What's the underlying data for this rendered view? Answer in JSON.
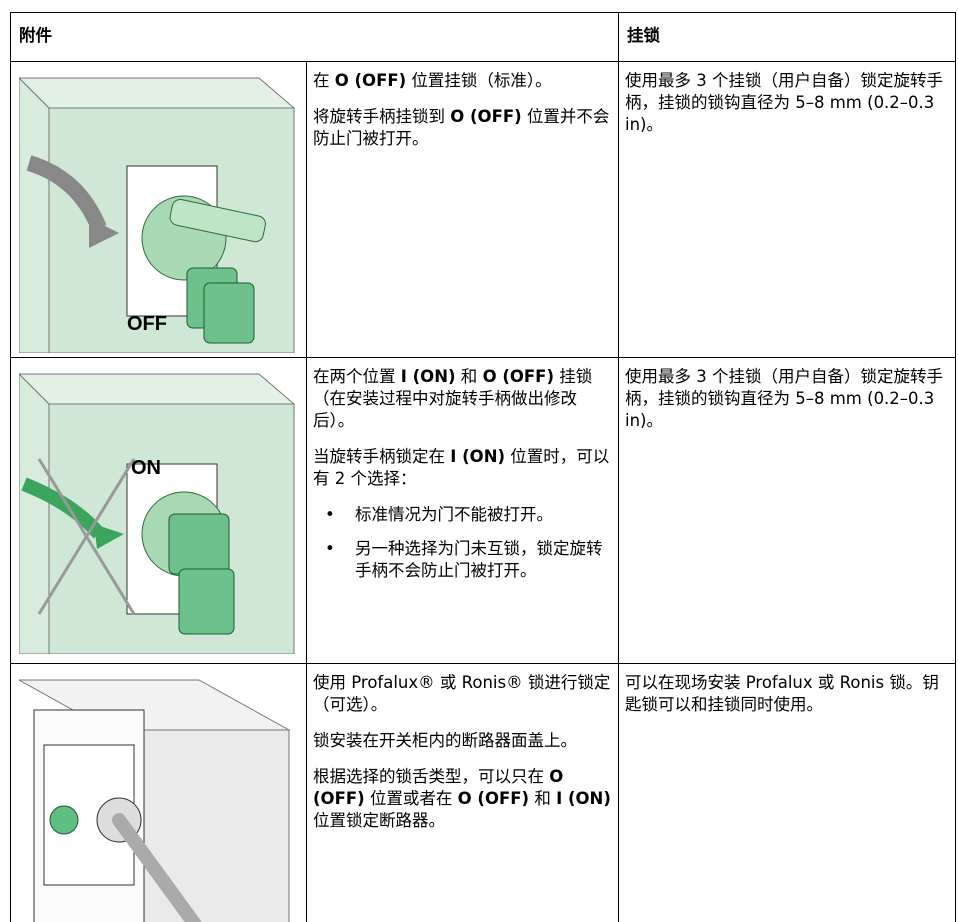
{
  "table": {
    "header": [
      "附件",
      "挂锁"
    ],
    "rows": [
      {
        "image_label": "OFF",
        "description": [
          [
            "在 ",
            {
              "bold": "O (OFF)"
            },
            " 位置挂锁（标准）。"
          ],
          [
            "将旋转手柄挂锁到 ",
            {
              "bold": "O (OFF)"
            },
            " 位置并不会防止门被打开。"
          ]
        ],
        "bullets": [],
        "padlock": "使用最多 3 个挂锁（用户自备）锁定旋转手柄，挂锁的锁钩直径为 5–8 mm (0.2–0.3 in)。"
      },
      {
        "image_label": "ON",
        "description": [
          [
            "在两个位置 ",
            {
              "bold": "I (ON)"
            },
            " 和 ",
            {
              "bold": "O (OFF)"
            },
            " 挂锁（在安装过程中对旋转手柄做出修改后）。"
          ],
          [
            "当旋转手柄锁定在 ",
            {
              "bold": "I (ON)"
            },
            " 位置时，可以有 2 个选择："
          ]
        ],
        "bullets": [
          "标准情况为门不能被打开。",
          "另一种选择为门未互锁，锁定旋转手柄不会防止门被打开。"
        ],
        "padlock": "使用最多 3 个挂锁（用户自备）锁定旋转手柄，挂锁的锁钩直径为 5–8 mm (0.2–0.3 in)。"
      },
      {
        "description": [
          [
            "使用 Profalux® 或 Ronis® 锁进行锁定（可选）。"
          ],
          [
            "锁安装在开关柜内的断路器面盖上。"
          ],
          [
            "根据选择的锁舌类型，可以只在 ",
            {
              "bold": "O (OFF)"
            },
            " 位置或者在 ",
            {
              "bold": "O (OFF)"
            },
            " 和 ",
            {
              "bold": "I (ON)"
            },
            " 位置锁定断路器。"
          ]
        ],
        "bullets": [],
        "padlock": "可以在现场安装 Profalux 或 Ronis 锁。钥匙锁可以和挂锁同时使用。"
      }
    ]
  }
}
